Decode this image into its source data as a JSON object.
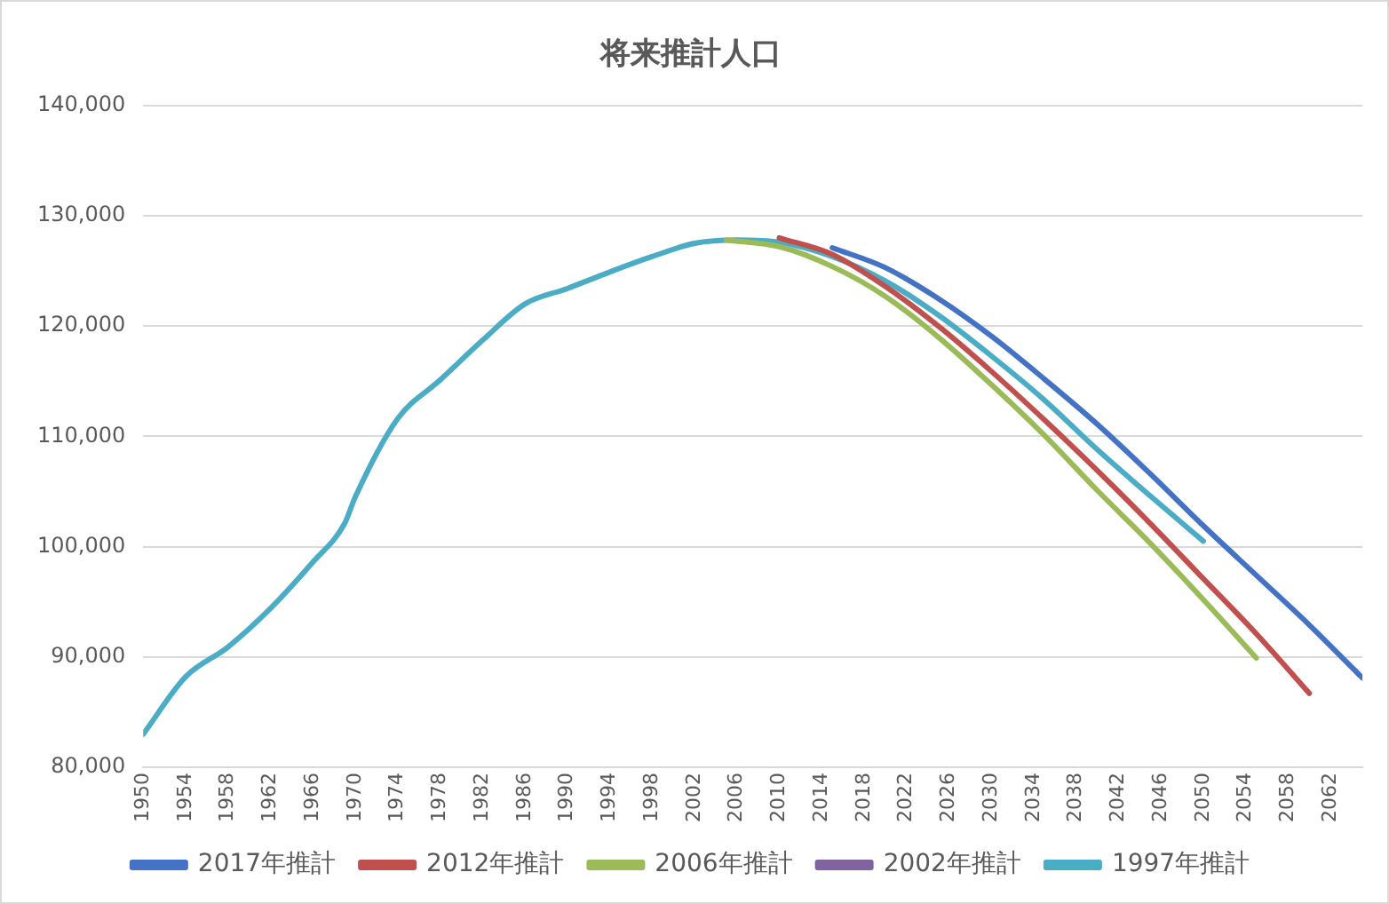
{
  "chart_data": {
    "type": "line",
    "title": "将来推計人口",
    "xlim": [
      1950,
      2065
    ],
    "xticks": [
      1950,
      1954,
      1958,
      1962,
      1966,
      1970,
      1974,
      1978,
      1982,
      1986,
      1990,
      1994,
      1998,
      2002,
      2006,
      2010,
      2014,
      2018,
      2022,
      2026,
      2030,
      2034,
      2038,
      2042,
      2046,
      2050,
      2054,
      2058,
      2062
    ],
    "ylim": [
      80000,
      140000
    ],
    "yticks": [
      {
        "value": 80000,
        "label": "80,000"
      },
      {
        "value": 90000,
        "label": "90,000"
      },
      {
        "value": 100000,
        "label": "100,000"
      },
      {
        "value": 110000,
        "label": "110,000"
      },
      {
        "value": 120000,
        "label": "120,000"
      },
      {
        "value": 130000,
        "label": "130,000"
      },
      {
        "value": 140000,
        "label": "140,000"
      }
    ],
    "grid": "y",
    "legend": "bottom",
    "marker": "none",
    "line_style": "solid",
    "series": [
      {
        "name": "2017年推計",
        "color": "#4472c4",
        "x": [
          2015,
          2020,
          2025,
          2030,
          2035,
          2040,
          2045,
          2050,
          2055,
          2060,
          2065
        ],
        "values": [
          127100,
          125300,
          122500,
          119100,
          115200,
          111100,
          106600,
          101900,
          97400,
          92900,
          88100
        ]
      },
      {
        "name": "2012年推計",
        "color": "#c0504d",
        "x": [
          2010,
          2015,
          2020,
          2025,
          2030,
          2035,
          2040,
          2045,
          2050,
          2055,
          2060
        ],
        "values": [
          128000,
          126500,
          123600,
          120000,
          115900,
          111500,
          106900,
          102100,
          97100,
          92100,
          86700
        ]
      },
      {
        "name": "2006年推計",
        "color": "#9bbb59",
        "x": [
          2005,
          2010,
          2015,
          2020,
          2025,
          2030,
          2035,
          2040,
          2045,
          2050,
          2055
        ],
        "values": [
          127800,
          127200,
          125400,
          122700,
          119000,
          114700,
          110100,
          105100,
          100300,
          95200,
          89900
        ]
      },
      {
        "name": "2002年推計",
        "color": "#8064a2"
      },
      {
        "name": "1997年推計",
        "color": "#4bacc6",
        "x": [
          1950,
          1954,
          1958,
          1962,
          1966,
          1969,
          1970,
          1974,
          1978,
          1982,
          1986,
          1990,
          1994,
          1998,
          2002,
          2006,
          2010,
          2015,
          2020,
          2025,
          2030,
          2035,
          2040,
          2045,
          2050
        ],
        "values": [
          83000,
          88200,
          90900,
          94400,
          98600,
          102100,
          104500,
          111600,
          115100,
          118700,
          122000,
          123400,
          124900,
          126300,
          127500,
          127800,
          127600,
          126300,
          124100,
          121000,
          117300,
          113300,
          108800,
          104600,
          100500
        ]
      }
    ]
  }
}
